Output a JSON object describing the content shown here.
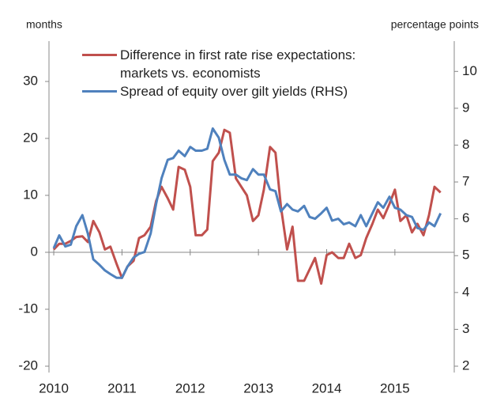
{
  "chart_data": {
    "type": "line",
    "y_label": "months",
    "y2_label": "percentage points",
    "x": [
      2010,
      2010.08,
      2010.17,
      2010.25,
      2010.33,
      2010.42,
      2010.5,
      2010.58,
      2010.67,
      2010.75,
      2010.83,
      2010.92,
      2011,
      2011.08,
      2011.17,
      2011.25,
      2011.33,
      2011.42,
      2011.5,
      2011.58,
      2011.67,
      2011.75,
      2011.83,
      2011.92,
      2012,
      2012.08,
      2012.17,
      2012.25,
      2012.33,
      2012.42,
      2012.5,
      2012.58,
      2012.67,
      2012.75,
      2012.83,
      2012.92,
      2013,
      2013.08,
      2013.17,
      2013.25,
      2013.33,
      2013.42,
      2013.5,
      2013.58,
      2013.67,
      2013.75,
      2013.83,
      2013.92,
      2014,
      2014.08,
      2014.17,
      2014.25,
      2014.33,
      2014.42,
      2014.5,
      2014.58,
      2014.67,
      2014.75,
      2014.83,
      2014.92,
      2015,
      2015.08,
      2015.17,
      2015.25,
      2015.33,
      2015.42,
      2015.5,
      2015.58,
      2015.67
    ],
    "xlim": [
      2009.93,
      2015.87
    ],
    "xticks": [
      2010,
      2011,
      2012,
      2013,
      2014,
      2015
    ],
    "ylim": [
      -20,
      35
    ],
    "yticks": [
      -20,
      -10,
      0,
      10,
      20,
      30
    ],
    "y2lim": [
      2,
      10.5
    ],
    "y2ticks": [
      2,
      3,
      4,
      5,
      6,
      7,
      8,
      9,
      10
    ],
    "legend": "upper center",
    "series": [
      {
        "name": "Difference in first rate rise expectations: markets vs. economists",
        "color": "#c0504d",
        "values": [
          0.5,
          1.5,
          1.5,
          2,
          2.7,
          2.8,
          1.8,
          5.5,
          3.5,
          0.5,
          1,
          -2,
          -4.5,
          -2.5,
          -1.5,
          2.5,
          3,
          4.5,
          9,
          11.5,
          9.5,
          7.5,
          15,
          14.5,
          11.5,
          3,
          3,
          4,
          16,
          17.5,
          21.5,
          21,
          13,
          11.5,
          10,
          5.5,
          6.5,
          11,
          18.5,
          17.5,
          8,
          0.5,
          4.5,
          -5,
          -5,
          -3,
          -1,
          -5.5,
          -0.5,
          0,
          -1,
          -1,
          1.5,
          -1,
          -0.5,
          2.5,
          5,
          7.5,
          6,
          8.5,
          11,
          5.5,
          6.5,
          3.5,
          5,
          3,
          6.5,
          11.5,
          10.5
        ]
      },
      {
        "name": "Spread of equity over gilt yields (RHS)",
        "color": "#4f81bd",
        "axis": "y2",
        "values": [
          5.2,
          5.55,
          5.25,
          5.3,
          5.8,
          6.1,
          5.6,
          4.9,
          4.75,
          4.6,
          4.5,
          4.4,
          4.4,
          4.7,
          4.95,
          5.05,
          5.1,
          5.6,
          6.4,
          7.1,
          7.6,
          7.65,
          7.85,
          7.7,
          7.95,
          7.85,
          7.85,
          7.9,
          8.45,
          8.2,
          7.6,
          7.2,
          7.2,
          7.1,
          7.05,
          7.35,
          7.2,
          7.2,
          6.8,
          6.75,
          6.2,
          6.4,
          6.25,
          6.2,
          6.35,
          6.05,
          6.0,
          6.15,
          6.3,
          5.95,
          6.0,
          5.85,
          5.9,
          5.8,
          6.1,
          5.8,
          6.15,
          6.45,
          6.3,
          6.6,
          6.3,
          6.25,
          6.1,
          6.05,
          5.75,
          5.7,
          5.9,
          5.8,
          6.15
        ]
      }
    ]
  }
}
